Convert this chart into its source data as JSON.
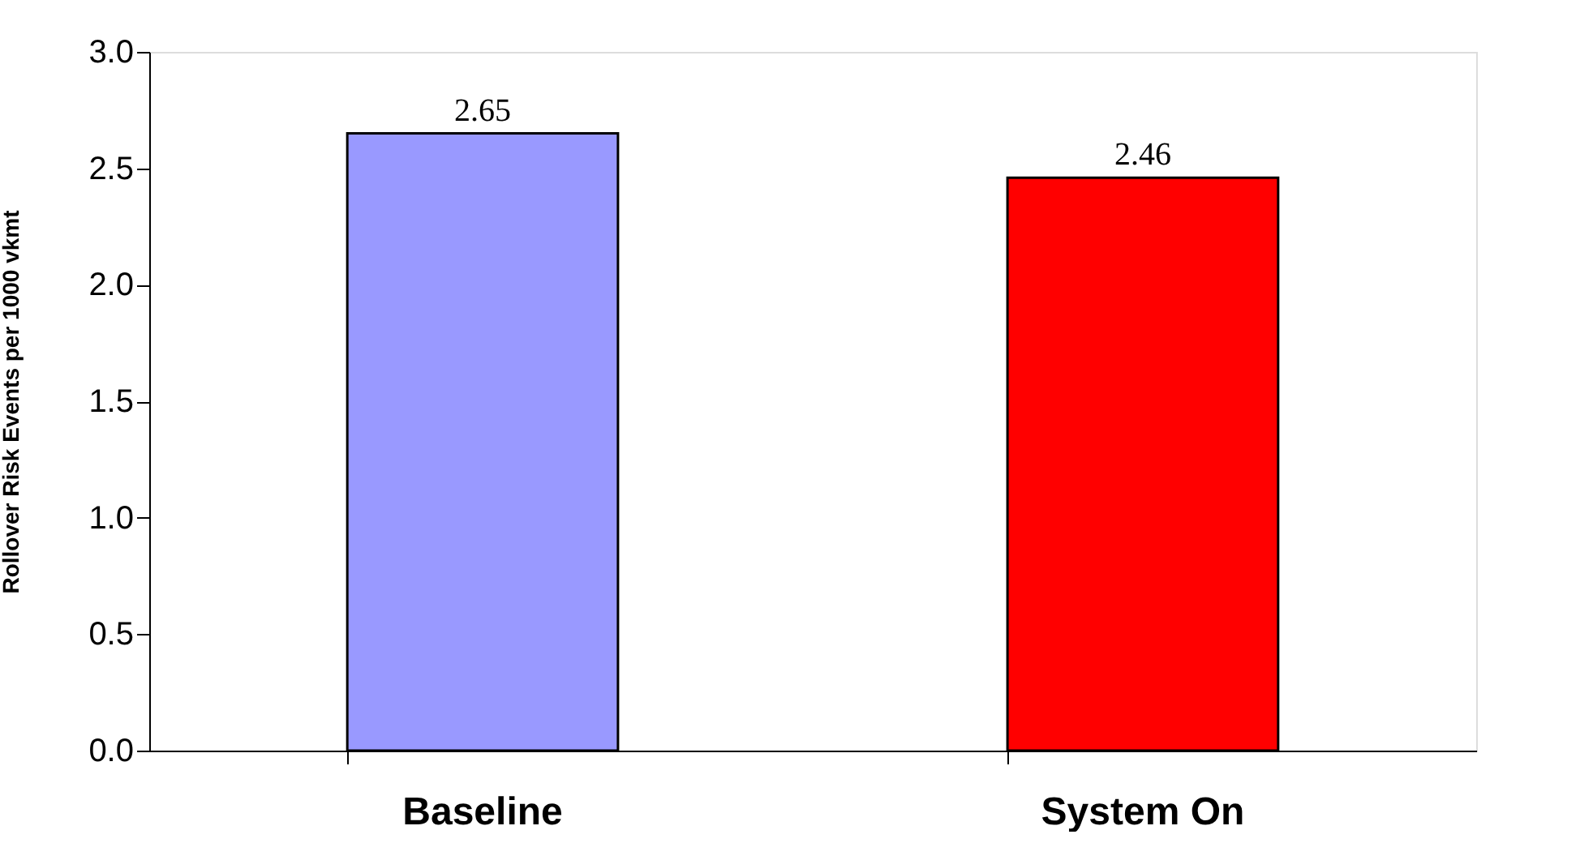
{
  "chart_data": {
    "type": "bar",
    "ylabel": "Rollover Risk Events per 1000 vkmt",
    "categories": [
      "Baseline",
      "System On"
    ],
    "values": [
      2.65,
      2.46
    ],
    "colors": [
      "#9999ff",
      "#ff0000"
    ],
    "ylim": [
      0,
      3.0
    ],
    "yticks": [
      {
        "value": 0,
        "label": "0.0"
      },
      {
        "value": 0.5,
        "label": "0.5"
      },
      {
        "value": 1,
        "label": "1.0"
      },
      {
        "value": 1.5,
        "label": "1.5"
      },
      {
        "value": 2,
        "label": "2.0"
      },
      {
        "value": 2.5,
        "label": "2.5"
      },
      {
        "value": 3,
        "label": "3.0"
      }
    ],
    "data_labels": true,
    "grid": false,
    "legend": false
  }
}
